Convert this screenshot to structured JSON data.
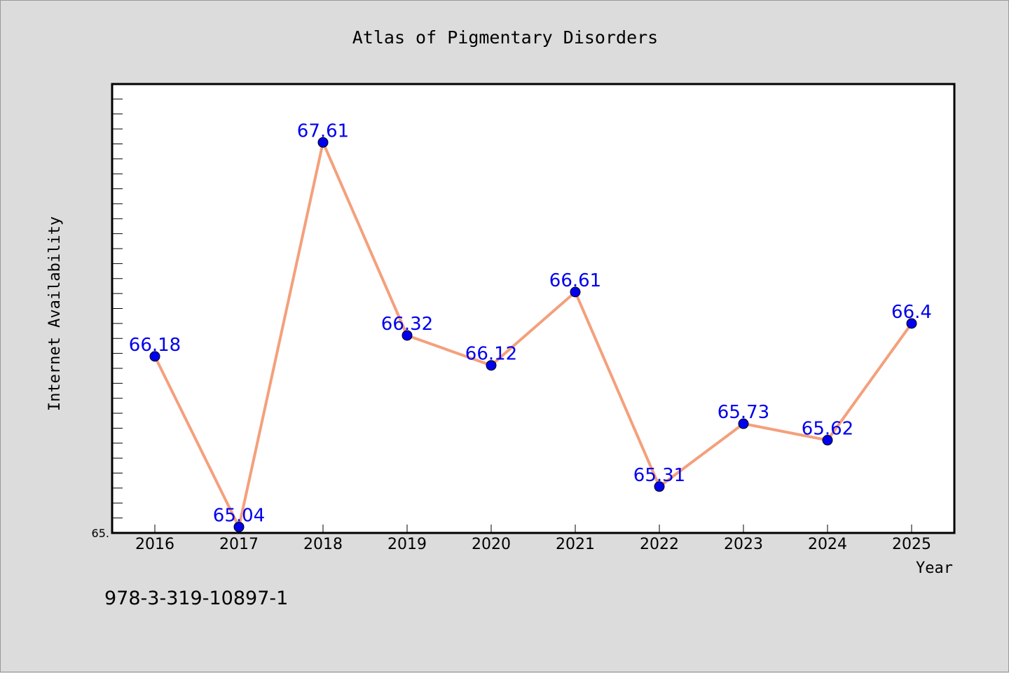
{
  "chart_data": {
    "type": "line",
    "title": "Atlas of Pigmentary Disorders",
    "xlabel": "Year",
    "ylabel": "Internet Availability",
    "categories": [
      "2016",
      "2017",
      "2018",
      "2019",
      "2020",
      "2021",
      "2022",
      "2023",
      "2024",
      "2025"
    ],
    "series": [
      {
        "values": [
          66.18,
          65.04,
          67.61,
          66.32,
          66.12,
          66.61,
          65.31,
          65.73,
          65.62,
          66.4
        ],
        "labels": [
          "66.18",
          "65.04",
          "67.61",
          "66.32",
          "66.12",
          "66.61",
          "65.31",
          "65.73",
          "65.62",
          "66.4"
        ]
      }
    ],
    "ylim": [
      65.0,
      68.0
    ],
    "yticks_labeled": [
      "65."
    ],
    "grid": false,
    "line_color": "#f4a07c",
    "marker_color": "#0000ee",
    "label_color": "#0000ee"
  },
  "footer_text": "978-3-319-10897-1"
}
